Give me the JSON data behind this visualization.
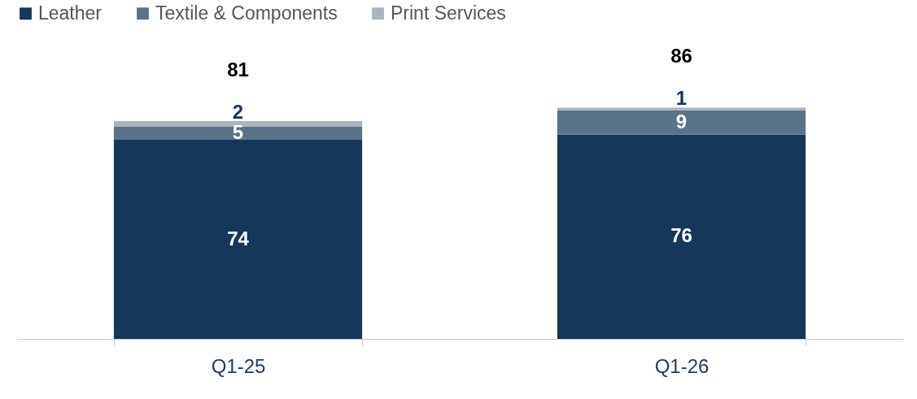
{
  "chart_data": {
    "type": "bar",
    "stacked": true,
    "categories": [
      "Q1-25",
      "Q1-26"
    ],
    "series": [
      {
        "name": "Leather",
        "color": "#14375a",
        "values": [
          74,
          76
        ]
      },
      {
        "name": "Textile & Components",
        "color": "#5b7389",
        "values": [
          5,
          9
        ]
      },
      {
        "name": "Print Services",
        "color": "#a7b4bf",
        "values": [
          2,
          1
        ]
      }
    ],
    "data_labels": true,
    "totals": [
      "81",
      "86"
    ],
    "legend": "top",
    "grid": false
  }
}
